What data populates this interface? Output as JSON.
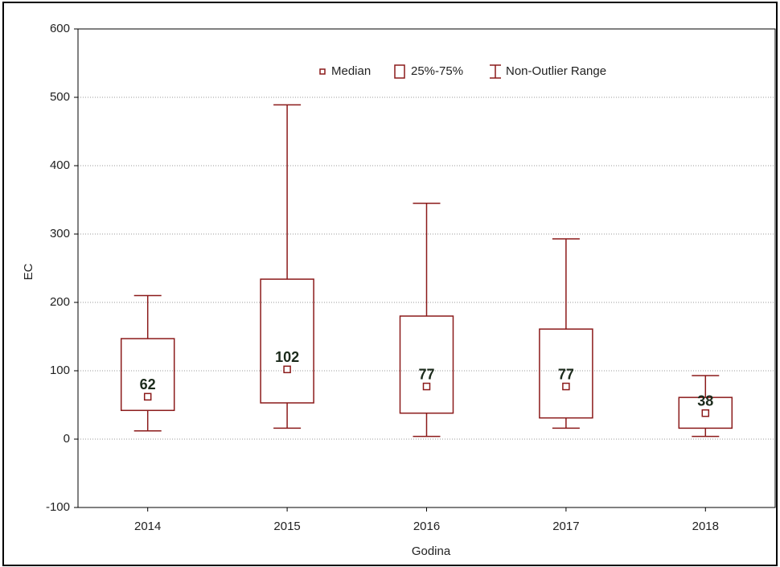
{
  "chart_data": {
    "type": "box",
    "ylabel": "EC",
    "xlabel": "Godina",
    "legend": [
      "Median",
      "25%-75%",
      "Non-Outlier Range"
    ],
    "categories": [
      "2014",
      "2015",
      "2016",
      "2017",
      "2018"
    ],
    "median": [
      62,
      102,
      77,
      77,
      38
    ],
    "value_labels": [
      "62",
      "102",
      "77",
      "77",
      "38"
    ],
    "q1": [
      42,
      53,
      38,
      31,
      16
    ],
    "q3": [
      147,
      234,
      180,
      161,
      61
    ],
    "whisker_low": [
      12,
      16,
      4,
      16,
      4
    ],
    "whisker_high": [
      210,
      489,
      345,
      293,
      93
    ],
    "color": "#8b1a1a",
    "ylim": [
      -100,
      600
    ],
    "yticks": [
      -100,
      0,
      100,
      200,
      300,
      400,
      500,
      600
    ],
    "grid": true
  }
}
